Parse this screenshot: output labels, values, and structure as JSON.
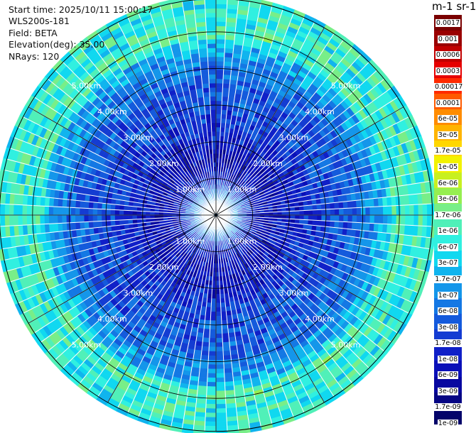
{
  "info": {
    "start_time": "Start time: 2025/10/11 15:00:17",
    "instrument": "WLS200s-181",
    "field": "Field: BETA",
    "elevation": "Elevation(deg): 35.00",
    "nrays": "NRays: 120"
  },
  "colorbar": {
    "unit_label": "m-1 sr-1",
    "labels": [
      "0.0017",
      "0.001",
      "0.0006",
      "0.0003",
      "0.00017",
      "0.0001",
      "6e-05",
      "3e-05",
      "1.7e-05",
      "1e-05",
      "6e-06",
      "3e-06",
      "1.7e-06",
      "1e-06",
      "6e-07",
      "3e-07",
      "1.7e-07",
      "1e-07",
      "6e-08",
      "3e-08",
      "1.7e-08",
      "1e-08",
      "6e-09",
      "3e-09",
      "1.7e-09",
      "1e-09"
    ],
    "colors": [
      "#7a0000",
      "#9a0000",
      "#c00000",
      "#e60000",
      "#ff2a00",
      "#ff5a00",
      "#ff8c00",
      "#ffb400",
      "#ffd700",
      "#f2f200",
      "#c8f020",
      "#96ee50",
      "#78ee88",
      "#50f0b8",
      "#30f0e0",
      "#10d8f0",
      "#10b4ee",
      "#1496ea",
      "#1478e4",
      "#145adc",
      "#143cd2",
      "#1020c8",
      "#0a10b8",
      "#0808a0",
      "#060684",
      "#04046a"
    ]
  },
  "chart_data": {
    "type": "heatmap",
    "projection": "polar PPI scan",
    "field": "BETA",
    "elevation_deg": 35.0,
    "n_rays": 120,
    "range_rings_km": [
      1.0,
      2.0,
      3.0,
      4.0,
      5.0
    ],
    "ring_labels": [
      "1.00km",
      "2.00km",
      "3.00km",
      "4.00km",
      "5.00km"
    ],
    "max_range_km": 5.0,
    "radial_profile": [
      {
        "range_km": 0.2,
        "beta": 6e-08
      },
      {
        "range_km": 0.5,
        "beta": 1e-07
      },
      {
        "range_km": 1.0,
        "beta": 1e-08
      },
      {
        "range_km": 1.5,
        "beta": 6e-09
      },
      {
        "range_km": 2.0,
        "beta": 1e-08
      },
      {
        "range_km": 2.5,
        "beta": 1.7e-08
      },
      {
        "range_km": 3.0,
        "beta": 3e-08
      },
      {
        "range_km": 3.5,
        "beta": 3e-08
      },
      {
        "range_km": 4.0,
        "beta": 6e-08
      },
      {
        "range_km": 4.3,
        "beta": 1e-07
      },
      {
        "range_km": 4.6,
        "beta": 1.7e-07
      },
      {
        "range_km": 4.9,
        "beta": 1e-06
      },
      {
        "range_km": 5.2,
        "beta": 6e-07
      }
    ],
    "colorscale": "log",
    "colorscale_range": [
      1e-09,
      0.0017
    ]
  }
}
